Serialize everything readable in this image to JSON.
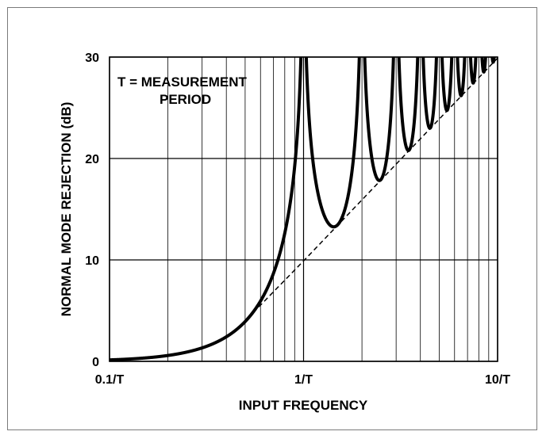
{
  "chart_data": {
    "type": "line",
    "title": "",
    "xlabel": "INPUT FREQUENCY",
    "ylabel": "NORMAL MODE REJECTION (dB)",
    "x_scale": "log",
    "x_unit": "cycles per measurement period (f·T)",
    "xlim": [
      0.1,
      10
    ],
    "ylim": [
      0,
      30
    ],
    "grid": true,
    "x_ticks": [
      {
        "value": 0.1,
        "label": "0.1/T"
      },
      {
        "value": 1,
        "label": "1/T"
      },
      {
        "value": 10,
        "label": "10/T"
      }
    ],
    "y_ticks": [
      {
        "value": 0,
        "label": "0"
      },
      {
        "value": 10,
        "label": "10"
      },
      {
        "value": 20,
        "label": "20"
      },
      {
        "value": 30,
        "label": "30"
      }
    ],
    "annotation": [
      "T = MEASUREMENT",
      "PERIOD"
    ],
    "series": [
      {
        "style": "solid",
        "formula": "-20*log10(|sin(pi*fT)/(pi*fT)|)",
        "minima": [
          [
            1.43,
            13.5
          ],
          [
            2.46,
            18.0
          ],
          [
            3.47,
            20.8
          ],
          [
            4.48,
            22.9
          ]
        ]
      },
      {
        "style": "dashed",
        "formula": "20*log10(pi*fT)",
        "x": [
          0.55,
          1,
          10
        ],
        "y": [
          4.8,
          9.9,
          29.9
        ]
      }
    ]
  }
}
